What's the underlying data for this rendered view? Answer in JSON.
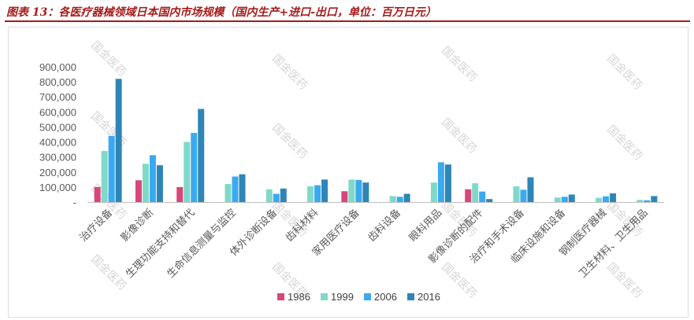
{
  "header": {
    "title": "图表 13：各医疗器械领域日本国内市场规模（国内生产+进口-出口，单位：百万日元）"
  },
  "watermark": "国金医药",
  "colors": {
    "title": "#a61c1c",
    "s1986": "#d7477a",
    "s1999": "#7fd9c9",
    "s2006": "#3aaaf0",
    "s2016": "#2f86b6"
  },
  "chart_data": {
    "type": "bar",
    "title": "",
    "xlabel": "",
    "ylabel": "",
    "ylim": [
      0,
      900000
    ],
    "yticks": [
      0,
      100000,
      200000,
      300000,
      400000,
      500000,
      600000,
      700000,
      800000,
      900000
    ],
    "ytick_labels": [
      "-",
      "100,000",
      "200,000",
      "300,000",
      "400,000",
      "500,000",
      "600,000",
      "700,000",
      "800,000",
      "900,000"
    ],
    "categories": [
      "治疗设备",
      "影像诊断",
      "生理功能支持和替代",
      "生命信息测量与监控",
      "体外诊断设备",
      "齿科材料",
      "家用医疗设备",
      "齿科设备",
      "眼科用品",
      "影像诊断的配件",
      "治疗和手术设备",
      "临床设施和设备",
      "钢制医疗器械",
      "卫生材料、卫生用品"
    ],
    "series": [
      {
        "name": "1986",
        "values": [
          100000,
          145000,
          100000,
          null,
          null,
          null,
          72000,
          null,
          null,
          85000,
          null,
          null,
          null,
          null
        ]
      },
      {
        "name": "1999",
        "values": [
          340000,
          255000,
          400000,
          120000,
          85000,
          105000,
          150000,
          40000,
          130000,
          125000,
          105000,
          30000,
          28000,
          15000
        ]
      },
      {
        "name": "2006",
        "values": [
          440000,
          312000,
          460000,
          170000,
          55000,
          112000,
          147000,
          35000,
          265000,
          70000,
          82000,
          35000,
          38000,
          12000
        ]
      },
      {
        "name": "2016",
        "values": [
          820000,
          245000,
          620000,
          185000,
          90000,
          150000,
          130000,
          55000,
          250000,
          20000,
          165000,
          50000,
          58000,
          40000
        ]
      }
    ],
    "grid": false,
    "legend_position": "bottom"
  }
}
